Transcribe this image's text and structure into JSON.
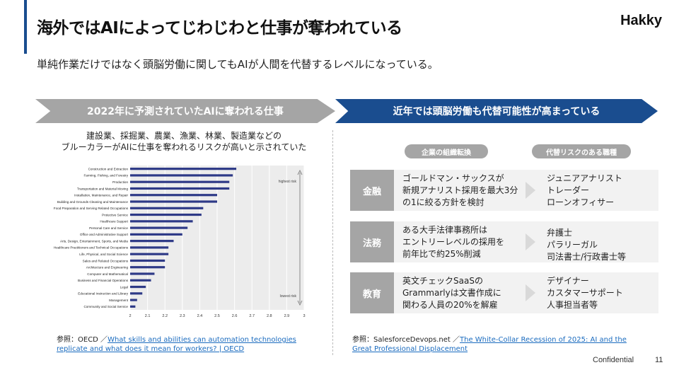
{
  "header": {
    "title": "海外ではAIによってじわじわと仕事が奪われている",
    "logo": "Hakky",
    "subtitle": "単純作業だけではなく頭脳労働に関してもAIが人間を代替するレベルになっている。"
  },
  "left_panel": {
    "banner": "2022年に予測されていたAIに奪われる仕事",
    "caption_line1": "建設業、採掘業、農業、漁業、林業、製造業などの",
    "caption_line2": "ブルーカラーがAIに仕事を奪われるリスクが高いと示されていた",
    "reference_prefix": "参照：OECD ／",
    "reference_link": "What skills and abilities can automation technologies replicate and what does it mean for workers? | OECD"
  },
  "right_panel": {
    "banner": "近年では頭脳労働も代替可能性が高まっている",
    "col1_header": "企業の組織転換",
    "col2_header": "代替リスクのある職種",
    "rows": [
      {
        "label": "金融",
        "desc": [
          "ゴールドマン・サックスが",
          "新規アナリスト採用を最大3分",
          "の1に絞る方針を検討"
        ],
        "jobs": [
          "ジュニアアナリスト",
          "トレーダー",
          "ローンオフィサー"
        ]
      },
      {
        "label": "法務",
        "desc": [
          "ある大手法律事務所は",
          "エントリーレベルの採用を",
          "前年比で約25%削減"
        ],
        "jobs": [
          "弁護士",
          "パラリーガル",
          "司法書士/行政書士等"
        ]
      },
      {
        "label": "教育",
        "desc": [
          "英文チェックSaaSの",
          "Grammarlyは文書作成に",
          "関わる人員の20%を解雇"
        ],
        "jobs": [
          "デザイナー",
          "カスタマーサポート",
          "人事担当者等"
        ]
      }
    ],
    "reference_prefix": "参照：SalesforceDevops.net ／",
    "reference_link": "The White-Collar Recession of 2025: AI and the Great Professional Displacement"
  },
  "footer": {
    "confidential": "Confidential",
    "page_number": "11"
  },
  "chart_data": {
    "type": "bar",
    "orientation": "horizontal",
    "categories": [
      "Construction and Extraction",
      "Farming, Fishing, and Forestry",
      "Production",
      "Transportation and Material Moving",
      "Installation, Maintenance, and Repair",
      "Building and Grounds Cleaning and Maintenance",
      "Food Preparation and Serving Related Occupations",
      "Protective Service",
      "Healthcare Support",
      "Personal Care and Service",
      "Office and Administrative Support",
      "Arts, Design, Entertainment, Sports, and Media",
      "Healthcare Practitioners and Technical Occupations",
      "Life, Physical, and Social Science",
      "Sales and Related Occupations",
      "Architecture and Engineering",
      "Computer and Mathematical",
      "Business and Financial Operations",
      "Legal",
      "Educational Instruction and Library",
      "Management",
      "Community and Social Service"
    ],
    "values": [
      2.61,
      2.59,
      2.57,
      2.57,
      2.5,
      2.5,
      2.42,
      2.41,
      2.36,
      2.33,
      2.3,
      2.25,
      2.22,
      2.22,
      2.2,
      2.2,
      2.14,
      2.12,
      2.09,
      2.07,
      2.04,
      2.03
    ],
    "xlim": [
      2,
      3
    ],
    "xticks": [
      "2",
      "2.1",
      "2.2",
      "2.3",
      "2.4",
      "2.5",
      "2.6",
      "2.7",
      "2.8",
      "2.9",
      "3"
    ],
    "annotation_top": "highest risk",
    "annotation_bottom": "lowest risk",
    "grid": true,
    "bar_color": "#2e3a87"
  }
}
